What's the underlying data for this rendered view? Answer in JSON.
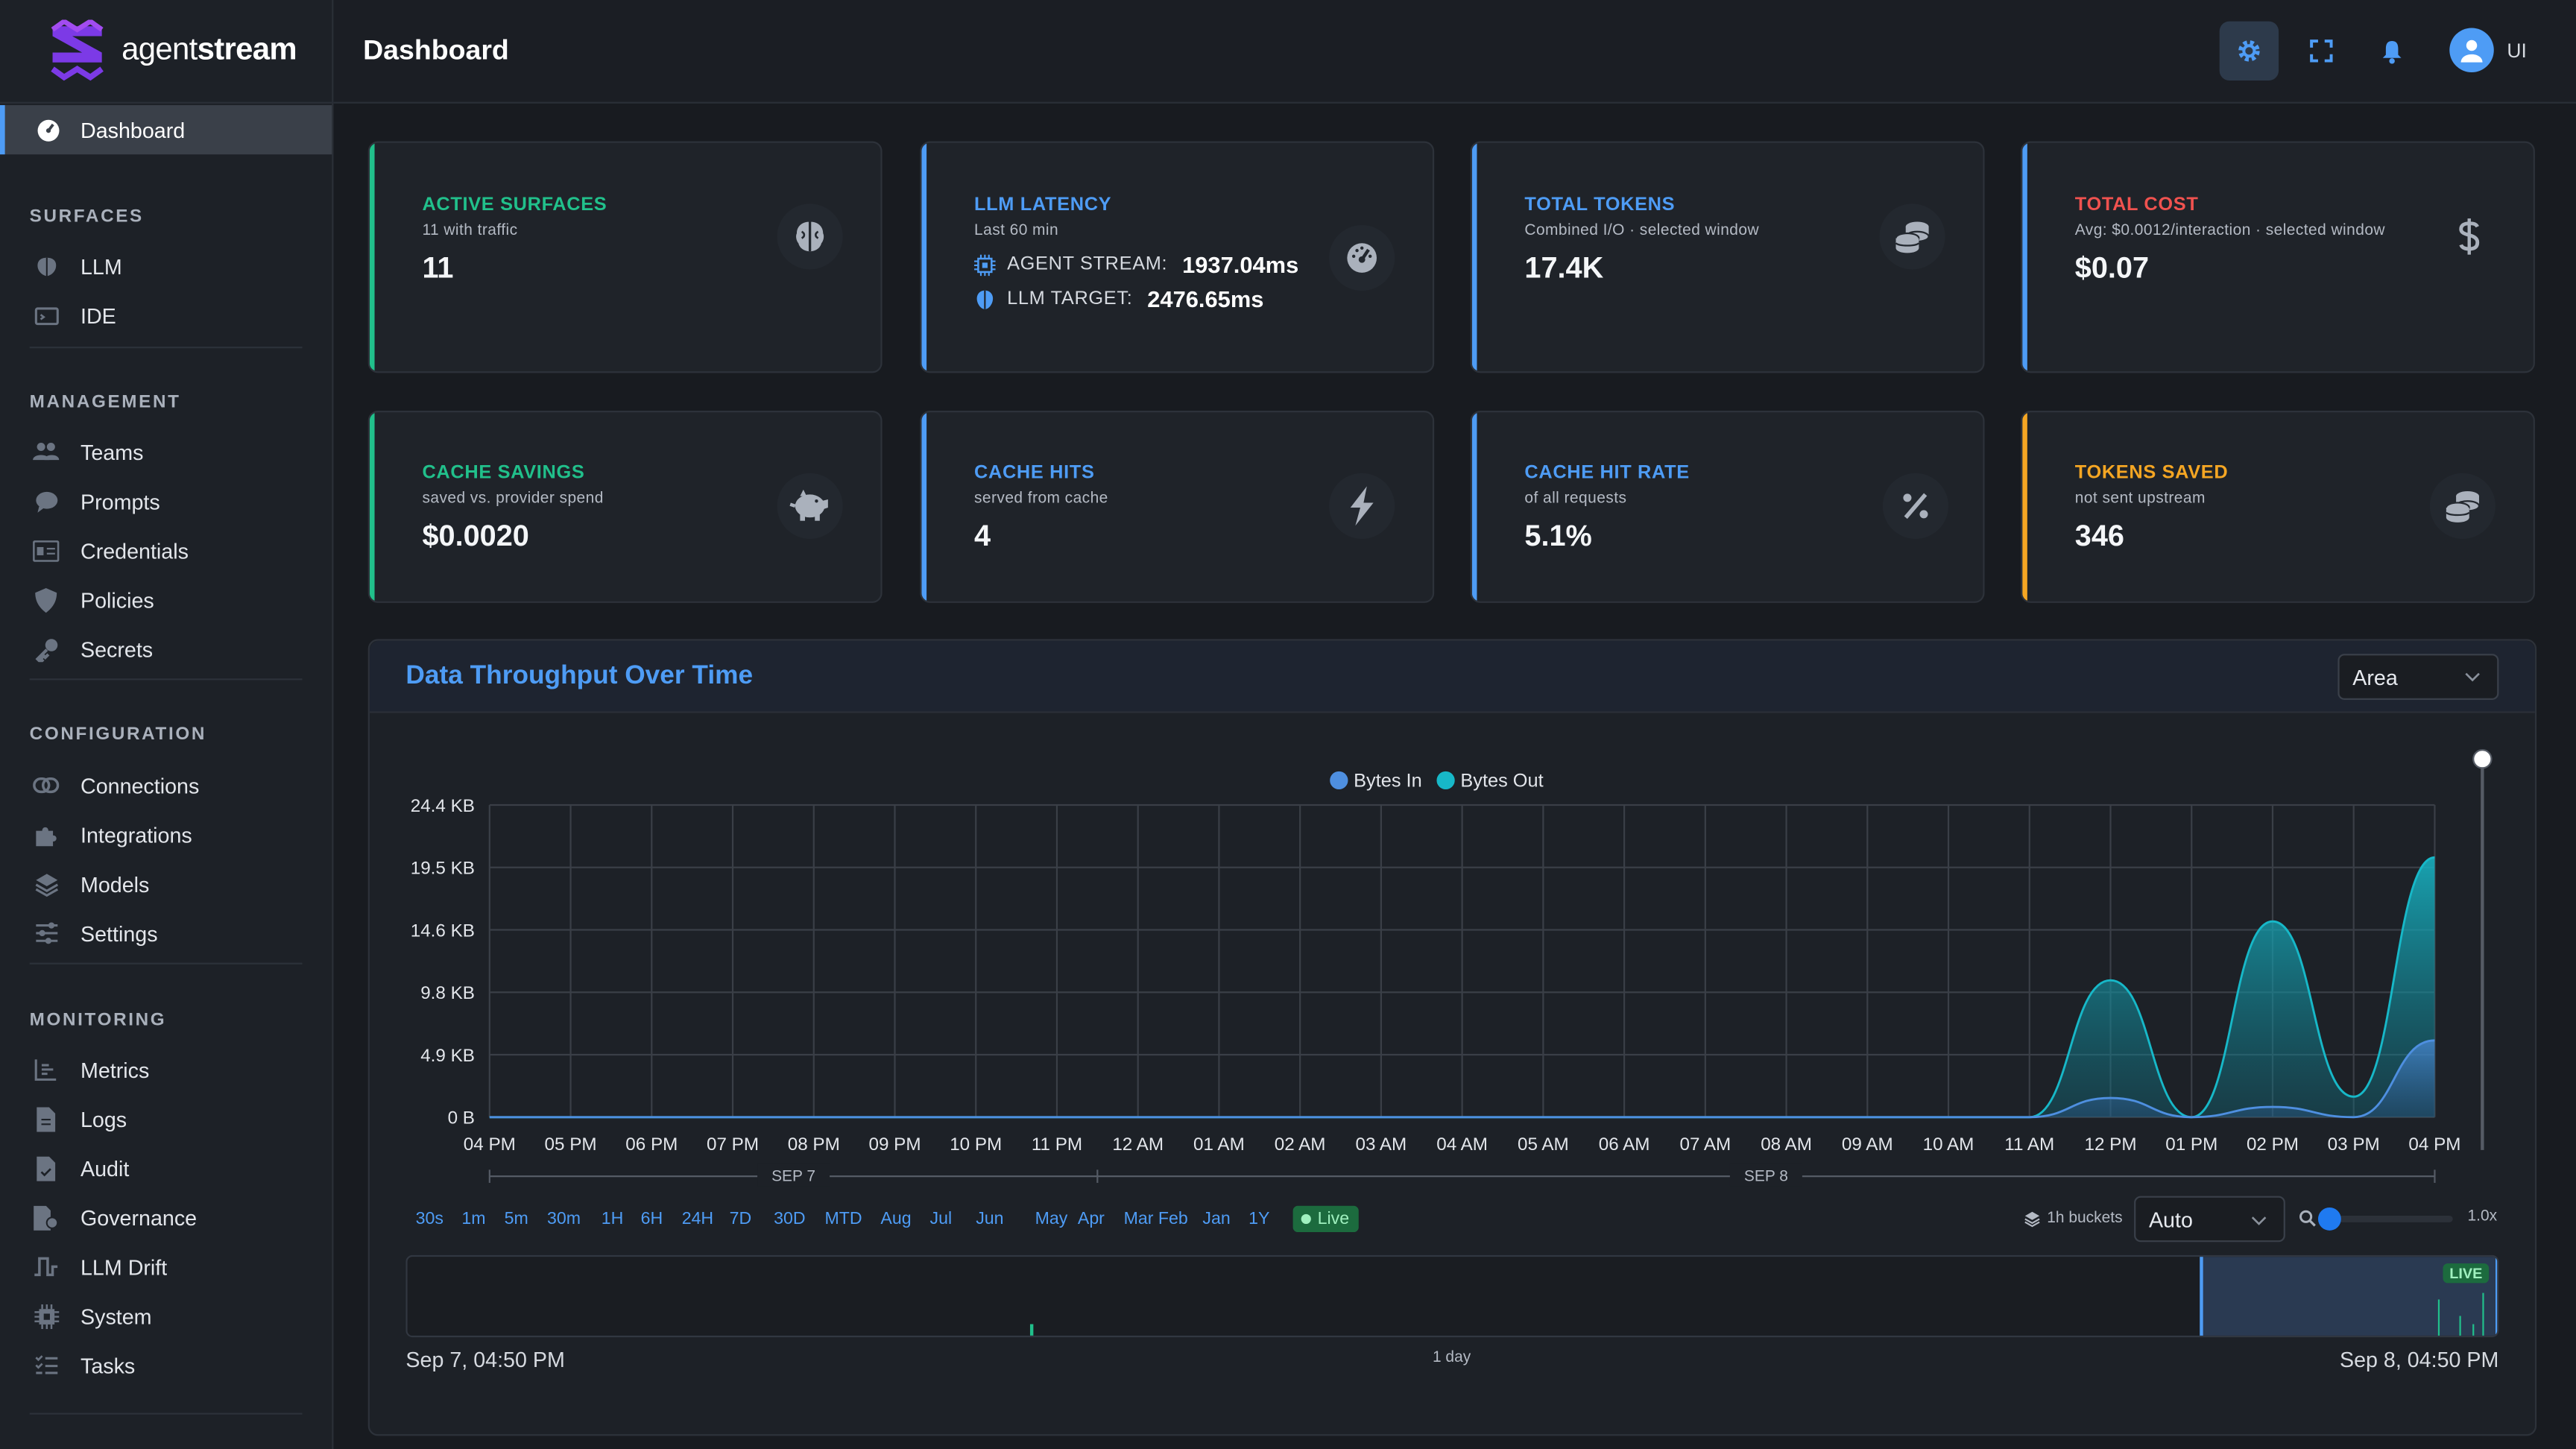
{
  "brand": {
    "name_light": "agent",
    "name_bold": "stream"
  },
  "header": {
    "title": "Dashboard",
    "user": "UI"
  },
  "sidebar": {
    "active": {
      "label": "Dashboard",
      "icon": "dashboard-icon"
    },
    "sections": [
      {
        "title": "SURFACES",
        "items": [
          {
            "label": "LLM",
            "icon": "brain-icon"
          },
          {
            "label": "IDE",
            "icon": "terminal-icon"
          }
        ]
      },
      {
        "title": "MANAGEMENT",
        "items": [
          {
            "label": "Teams",
            "icon": "users-icon"
          },
          {
            "label": "Prompts",
            "icon": "chat-icon"
          },
          {
            "label": "Credentials",
            "icon": "id-card-icon"
          },
          {
            "label": "Policies",
            "icon": "shield-icon"
          },
          {
            "label": "Secrets",
            "icon": "key-icon"
          }
        ]
      },
      {
        "title": "CONFIGURATION",
        "items": [
          {
            "label": "Connections",
            "icon": "link-icon"
          },
          {
            "label": "Integrations",
            "icon": "puzzle-icon"
          },
          {
            "label": "Models",
            "icon": "layers-icon"
          },
          {
            "label": "Settings",
            "icon": "sliders-icon"
          }
        ]
      },
      {
        "title": "MONITORING",
        "items": [
          {
            "label": "Metrics",
            "icon": "chart-icon"
          },
          {
            "label": "Logs",
            "icon": "file-icon"
          },
          {
            "label": "Audit",
            "icon": "clipboard-icon"
          },
          {
            "label": "Governance",
            "icon": "gavel-icon"
          },
          {
            "label": "LLM Drift",
            "icon": "pulse-icon"
          },
          {
            "label": "System",
            "icon": "cpu-icon"
          },
          {
            "label": "Tasks",
            "icon": "tasks-icon"
          }
        ]
      }
    ]
  },
  "cards": [
    {
      "title": "ACTIVE SURFACES",
      "sub": "11 with traffic",
      "value": "11",
      "color": "#21c08b",
      "icon": "brain-icon"
    },
    {
      "title": "LLM LATENCY",
      "sub": "Last 60 min",
      "color": "#4e9cf5",
      "icon": "gauge-icon",
      "rows": [
        {
          "label": "AGENT STREAM:",
          "value": "1937.04ms",
          "icon": "cpu-icon"
        },
        {
          "label": "LLM TARGET:",
          "value": "2476.65ms",
          "icon": "brain-icon"
        }
      ]
    },
    {
      "title": "TOTAL TOKENS",
      "sub": "Combined I/O · selected window",
      "value": "17.4K",
      "color": "#4e9cf5",
      "icon": "coins-icon"
    },
    {
      "title": "TOTAL COST",
      "sub": "Avg: $0.0012/interaction · selected window",
      "value": "$0.07",
      "color": "#f0524f",
      "icon": "dollar-icon"
    },
    {
      "title": "CACHE SAVINGS",
      "sub": "saved vs. provider spend",
      "value": "$0.0020",
      "color": "#21c08b",
      "icon": "piggy-bank-icon"
    },
    {
      "title": "CACHE HITS",
      "sub": "served from cache",
      "value": "4",
      "color": "#4e9cf5",
      "icon": "bolt-icon"
    },
    {
      "title": "CACHE HIT RATE",
      "sub": "of all requests",
      "value": "5.1%",
      "color": "#4e9cf5",
      "icon": "percent-icon"
    },
    {
      "title": "TOKENS SAVED",
      "sub": "not sent upstream",
      "value": "346",
      "color": "#f5a623",
      "icon": "coins-icon"
    }
  ],
  "panel": {
    "title": "Data Throughput Over Time",
    "chart_type_select": "Area",
    "ranges": [
      "30s",
      "1m",
      "5m",
      "30m",
      "1H",
      "6H",
      "24H",
      "7D",
      "30D",
      "MTD",
      "Aug",
      "Jul",
      "Jun",
      "May",
      "Apr",
      "Mar",
      "Feb",
      "Jan",
      "1Y"
    ],
    "live_label": "Live",
    "buckets_label": "1h buckets",
    "bucket_select": "Auto",
    "zoom_label": "1.0x",
    "minimap_live": "LIVE",
    "range_start": "Sep 7, 04:50 PM",
    "range_span": "1 day",
    "range_end": "Sep 8, 04:50 PM"
  },
  "chart_data": {
    "type": "area",
    "legend": [
      "Bytes In",
      "Bytes Out"
    ],
    "legend_position": "top-center",
    "ylabel": "",
    "yticks": [
      "0 B",
      "4.9 KB",
      "9.8 KB",
      "14.6 KB",
      "19.5 KB",
      "24.4 KB"
    ],
    "ylim_kb": [
      0,
      24.4
    ],
    "categories": [
      "04 PM",
      "05 PM",
      "06 PM",
      "07 PM",
      "08 PM",
      "09 PM",
      "10 PM",
      "11 PM",
      "12 AM",
      "01 AM",
      "02 AM",
      "03 AM",
      "04 AM",
      "05 AM",
      "06 AM",
      "07 AM",
      "08 AM",
      "09 AM",
      "10 AM",
      "11 AM",
      "12 PM",
      "01 PM",
      "02 PM",
      "03 PM",
      "04 PM"
    ],
    "date_labels": [
      "SEP 7",
      "SEP 8"
    ],
    "series": [
      {
        "name": "Bytes In",
        "color": "#4e8fe0",
        "values": [
          0,
          0,
          0,
          0,
          0,
          0,
          0,
          0,
          0,
          0,
          0,
          0,
          0,
          0,
          0,
          0,
          0,
          0,
          0,
          0,
          1.5,
          0,
          0.8,
          0,
          6.0
        ]
      },
      {
        "name": "Bytes Out",
        "color": "#17b8c8",
        "values": [
          0,
          0,
          0,
          0,
          0,
          0,
          0,
          0,
          0,
          0,
          0,
          0,
          0,
          0,
          0,
          0,
          0,
          0,
          0,
          0,
          10.7,
          0,
          15.3,
          1.6,
          20.3
        ]
      }
    ],
    "grid": true
  }
}
